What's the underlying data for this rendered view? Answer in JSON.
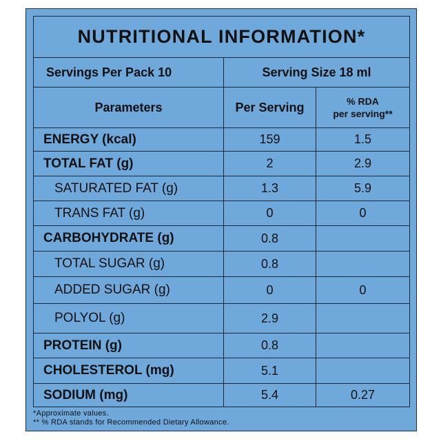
{
  "title": "NUTRITIONAL INFORMATION*",
  "servings_per_pack": "Servings Per Pack 10",
  "serving_size": "Serving Size 18 ml",
  "columns": {
    "parameters": "Parameters",
    "per_serving": "Per Serving",
    "rda_line1": "% RDA",
    "rda_line2": "per serving**"
  },
  "rows": [
    {
      "name": "ENERGY (kcal)",
      "per_serving": "159",
      "rda": "1.5"
    },
    {
      "name": "TOTAL FAT (g)",
      "per_serving": "2",
      "rda": "2.9"
    },
    {
      "name": "SATURATED FAT (g)",
      "per_serving": "1.3",
      "rda": "5.9"
    },
    {
      "name": "TRANS FAT (g)",
      "per_serving": "0",
      "rda": "0"
    },
    {
      "name": "CARBOHYDRATE (g)",
      "per_serving": "0.8",
      "rda": ""
    },
    {
      "name": "TOTAL SUGAR (g)",
      "per_serving": "0.8",
      "rda": ""
    },
    {
      "name": "ADDED SUGAR (g)",
      "per_serving": "0",
      "rda": "0"
    },
    {
      "name": "POLYOL (g)",
      "per_serving": "2.9",
      "rda": ""
    },
    {
      "name": "PROTEIN (g)",
      "per_serving": "0.8",
      "rda": ""
    },
    {
      "name": "CHOLESTEROL (mg)",
      "per_serving": "5.1",
      "rda": ""
    },
    {
      "name": "SODIUM (mg)",
      "per_serving": "5.4",
      "rda": "0.27"
    }
  ],
  "footnotes": [
    "*Approximate values.",
    "** % RDA stands for Recommended Dietary Allowance."
  ],
  "colors": {
    "panel": "#6fa8da",
    "border": "#1b2733",
    "text": "#111111"
  }
}
